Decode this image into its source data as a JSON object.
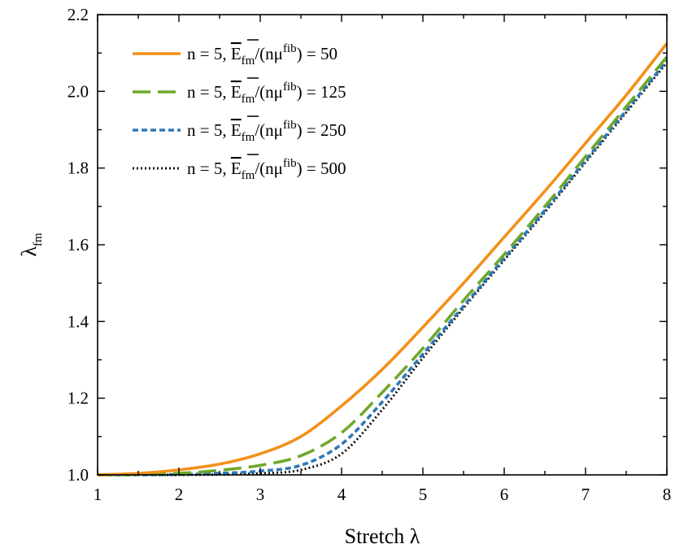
{
  "chart_data": {
    "type": "line",
    "xlabel": "Stretch λ",
    "ylabel": {
      "base": "λ",
      "sub": "fm"
    },
    "xlim": [
      1,
      8
    ],
    "ylim": [
      1.0,
      2.2
    ],
    "xticks": [
      "1",
      "2",
      "3",
      "4",
      "5",
      "6",
      "7",
      "8"
    ],
    "yticks": [
      "1.0",
      "1.2",
      "1.4",
      "1.6",
      "1.8",
      "2.0",
      "2.2"
    ],
    "grid": false,
    "legend_position": "top-left",
    "x": [
      1.0,
      1.5,
      2.0,
      2.5,
      3.0,
      3.5,
      4.0,
      4.5,
      5.0,
      5.5,
      6.0,
      6.5,
      7.0,
      7.5,
      8.0
    ],
    "series": [
      {
        "label": {
          "prefix": "n = 5, ",
          "E": "E",
          "E_sub": "fm",
          "mid": "/(nμ",
          "sup": "fib",
          "suffix": ") = 50"
        },
        "color": "#f39019",
        "dash": "",
        "values": [
          1.0,
          1.004,
          1.013,
          1.028,
          1.055,
          1.1,
          1.18,
          1.275,
          1.385,
          1.5,
          1.62,
          1.74,
          1.865,
          1.99,
          2.125
        ]
      },
      {
        "label": {
          "prefix": "n = 5, ",
          "E": "E",
          "E_sub": "fm",
          "mid": "/(nμ",
          "sup": "fib",
          "suffix": ") = 125"
        },
        "color": "#6fa82b",
        "dash": "22 9",
        "values": [
          1.0,
          1.001,
          1.004,
          1.012,
          1.025,
          1.05,
          1.11,
          1.215,
          1.33,
          1.455,
          1.575,
          1.7,
          1.83,
          1.96,
          2.09
        ]
      },
      {
        "label": {
          "prefix": "n = 5, ",
          "E": "E",
          "E_sub": "fm",
          "mid": "/(nμ",
          "sup": "fib",
          "suffix": ") = 250"
        },
        "color": "#2f78b6",
        "dash": "7 4",
        "values": [
          1.0,
          1.0,
          1.001,
          1.004,
          1.01,
          1.025,
          1.08,
          1.19,
          1.315,
          1.44,
          1.565,
          1.69,
          1.82,
          1.95,
          2.08
        ]
      },
      {
        "label": {
          "prefix": "n = 5, ",
          "E": "E",
          "E_sub": "fm",
          "mid": "/(nμ",
          "sup": "fib",
          "suffix": ") = 500"
        },
        "color": "#111111",
        "dash": "2 3",
        "values": [
          1.0,
          1.0,
          1.0,
          1.001,
          1.004,
          1.013,
          1.055,
          1.17,
          1.305,
          1.435,
          1.56,
          1.685,
          1.815,
          1.945,
          2.075
        ]
      }
    ]
  }
}
